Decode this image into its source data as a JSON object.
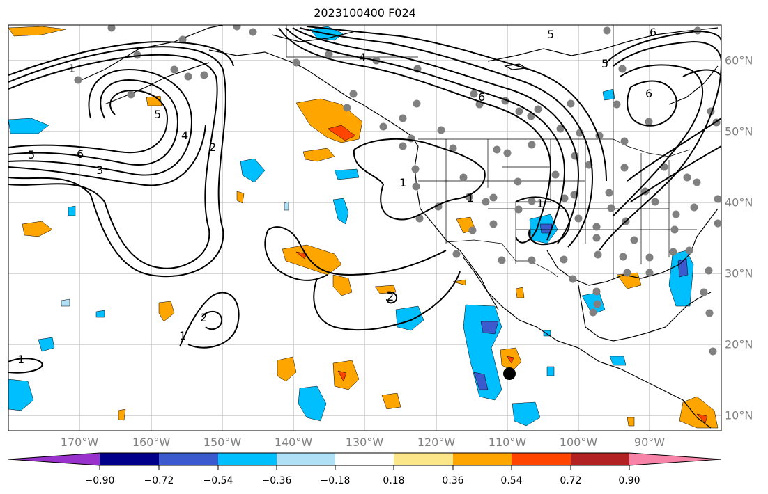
{
  "title": "2023100400 F024",
  "map": {
    "lon_labels": [
      "170°W",
      "160°W",
      "150°W",
      "140°W",
      "130°W",
      "120°W",
      "110°W",
      "100°W",
      "90°W"
    ],
    "lat_labels": [
      "60°N",
      "50°N",
      "40°N",
      "30°N",
      "20°N",
      "10°N"
    ],
    "contour_labels": [
      "1",
      "1",
      "1",
      "1",
      "1",
      "1",
      "2",
      "2",
      "2",
      "3",
      "4",
      "4",
      "5",
      "5",
      "5",
      "5",
      "6",
      "6",
      "6",
      "6"
    ]
  },
  "colorbar": {
    "colors": [
      "#9932cc",
      "#00008b",
      "#3a5acd",
      "#00bfff",
      "#b0e0f6",
      "#ffffff",
      "#fbe689",
      "#ffa500",
      "#ff4500",
      "#b22222",
      "#f883a8"
    ],
    "tick_labels": [
      "−0.90",
      "−0.72",
      "−0.54",
      "−0.36",
      "−0.18",
      "0.18",
      "0.36",
      "0.54",
      "0.72",
      "0.90"
    ]
  },
  "legend_colors": {
    "positive_fill": "#ffa500",
    "strong_positive_fill": "#ff4500",
    "negative_fill": "#00bfff",
    "strong_negative_fill": "#3a5acd",
    "station_marker": "#808080",
    "storm_marker": "#000000"
  }
}
